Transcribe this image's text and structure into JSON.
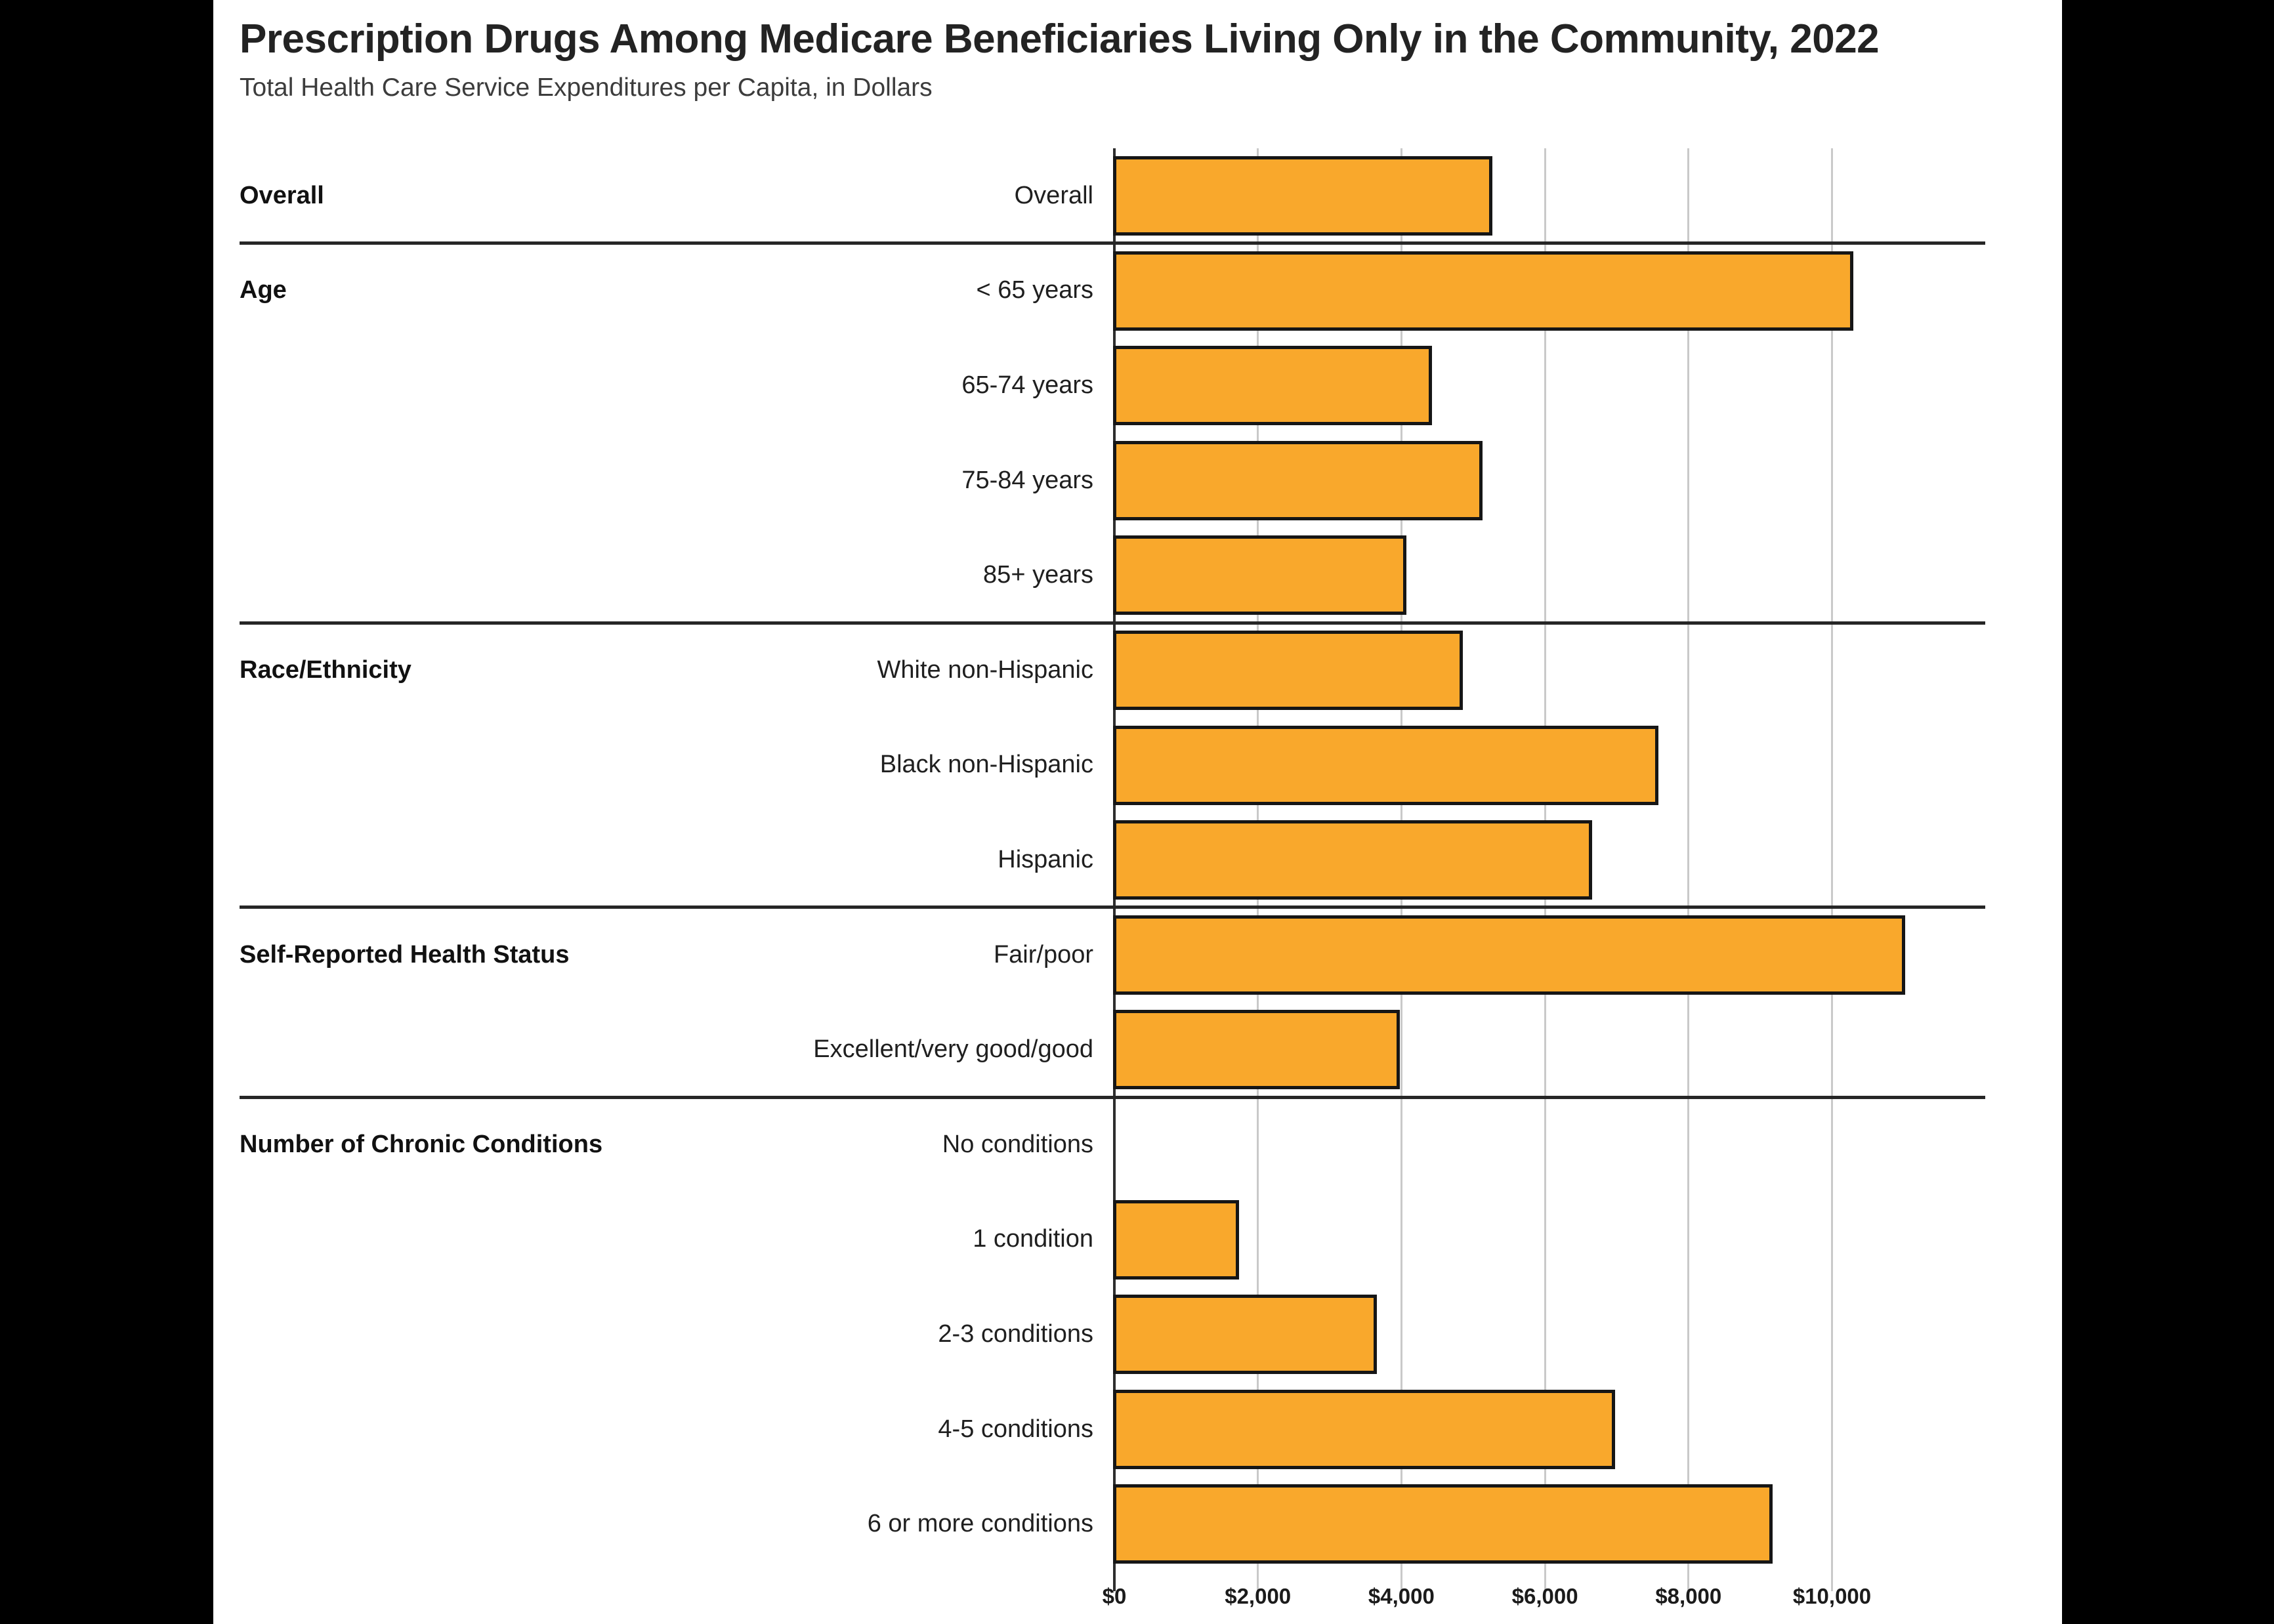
{
  "title": "Prescription Drugs Among Medicare Beneficiaries Living Only in the Community, 2022",
  "subtitle": "Total Health Care Service Expenditures per Capita, in Dollars",
  "chart_data": {
    "type": "bar",
    "orientation": "horizontal",
    "title": "Prescription Drugs Among Medicare Beneficiaries Living Only in the Community, 2022",
    "subtitle": "Total Health Care Service Expenditures per Capita, in Dollars",
    "unit": "dollars per capita",
    "xlim": [
      0,
      12000
    ],
    "grid": true,
    "bar_color": "#f9a82c",
    "bar_border_color": "#161616",
    "x_ticks": [
      {
        "value": 0,
        "label": "$0"
      },
      {
        "value": 2000,
        "label": "$2,000"
      },
      {
        "value": 4000,
        "label": "$4,000"
      },
      {
        "value": 6000,
        "label": "$6,000"
      },
      {
        "value": 8000,
        "label": "$8,000"
      },
      {
        "value": 10000,
        "label": "$10,000"
      }
    ],
    "groups": [
      {
        "label": "Overall",
        "rows": [
          {
            "label": "Overall",
            "value": 5290
          }
        ]
      },
      {
        "label": "Age",
        "rows": [
          {
            "label": "< 65 years",
            "value": 10320
          },
          {
            "label": "65-74 years",
            "value": 4440
          },
          {
            "label": "75-84 years",
            "value": 5150
          },
          {
            "label": "85+ years",
            "value": 4090
          }
        ]
      },
      {
        "label": "Race/Ethnicity",
        "rows": [
          {
            "label": "White non-Hispanic",
            "value": 4870
          },
          {
            "label": "Black non-Hispanic",
            "value": 7600
          },
          {
            "label": "Hispanic",
            "value": 6680
          }
        ]
      },
      {
        "label": "Self-Reported Health Status",
        "rows": [
          {
            "label": "Fair/poor",
            "value": 11040
          },
          {
            "label": "Excellent/very good/good",
            "value": 4000
          }
        ]
      },
      {
        "label": "Number of Chronic Conditions",
        "rows": [
          {
            "label": "No conditions",
            "value": 0
          },
          {
            "label": "1 condition",
            "value": 1760
          },
          {
            "label": "2-3 conditions",
            "value": 3680
          },
          {
            "label": "4-5 conditions",
            "value": 7000
          },
          {
            "label": "6 or more conditions",
            "value": 9190
          }
        ]
      }
    ]
  }
}
